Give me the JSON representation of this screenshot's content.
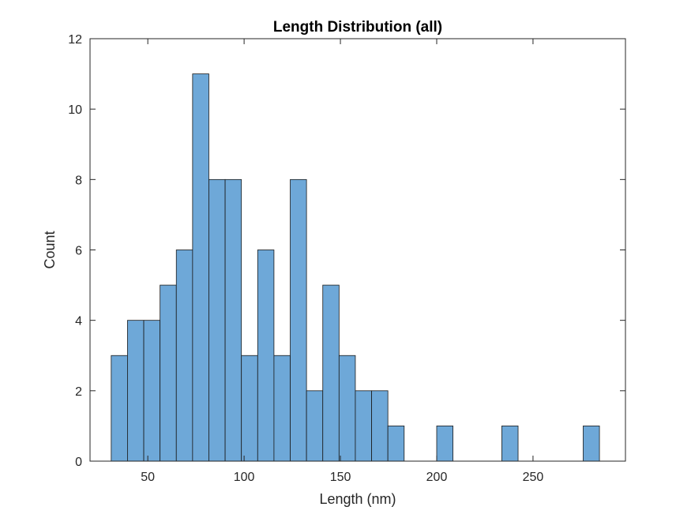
{
  "chart_data": {
    "type": "bar",
    "title": "Length Distribution (all)",
    "xlabel": "Length (nm)",
    "ylabel": "Count",
    "xlim": [
      20,
      298
    ],
    "ylim": [
      0,
      12
    ],
    "xticks": [
      50,
      100,
      150,
      200,
      250
    ],
    "yticks": [
      0,
      2,
      4,
      6,
      8,
      10,
      12
    ],
    "grid": false,
    "bin_width": 8.45,
    "bin_start": 31.0,
    "bin_counts": [
      3,
      4,
      4,
      5,
      6,
      11,
      8,
      8,
      3,
      6,
      3,
      8,
      2,
      5,
      3,
      2,
      2,
      1,
      0,
      0,
      1,
      0,
      0,
      0,
      1,
      0,
      0,
      0,
      0,
      1
    ],
    "bar_color": "#6ea8d8",
    "edge_color": "#1a1a1a"
  }
}
